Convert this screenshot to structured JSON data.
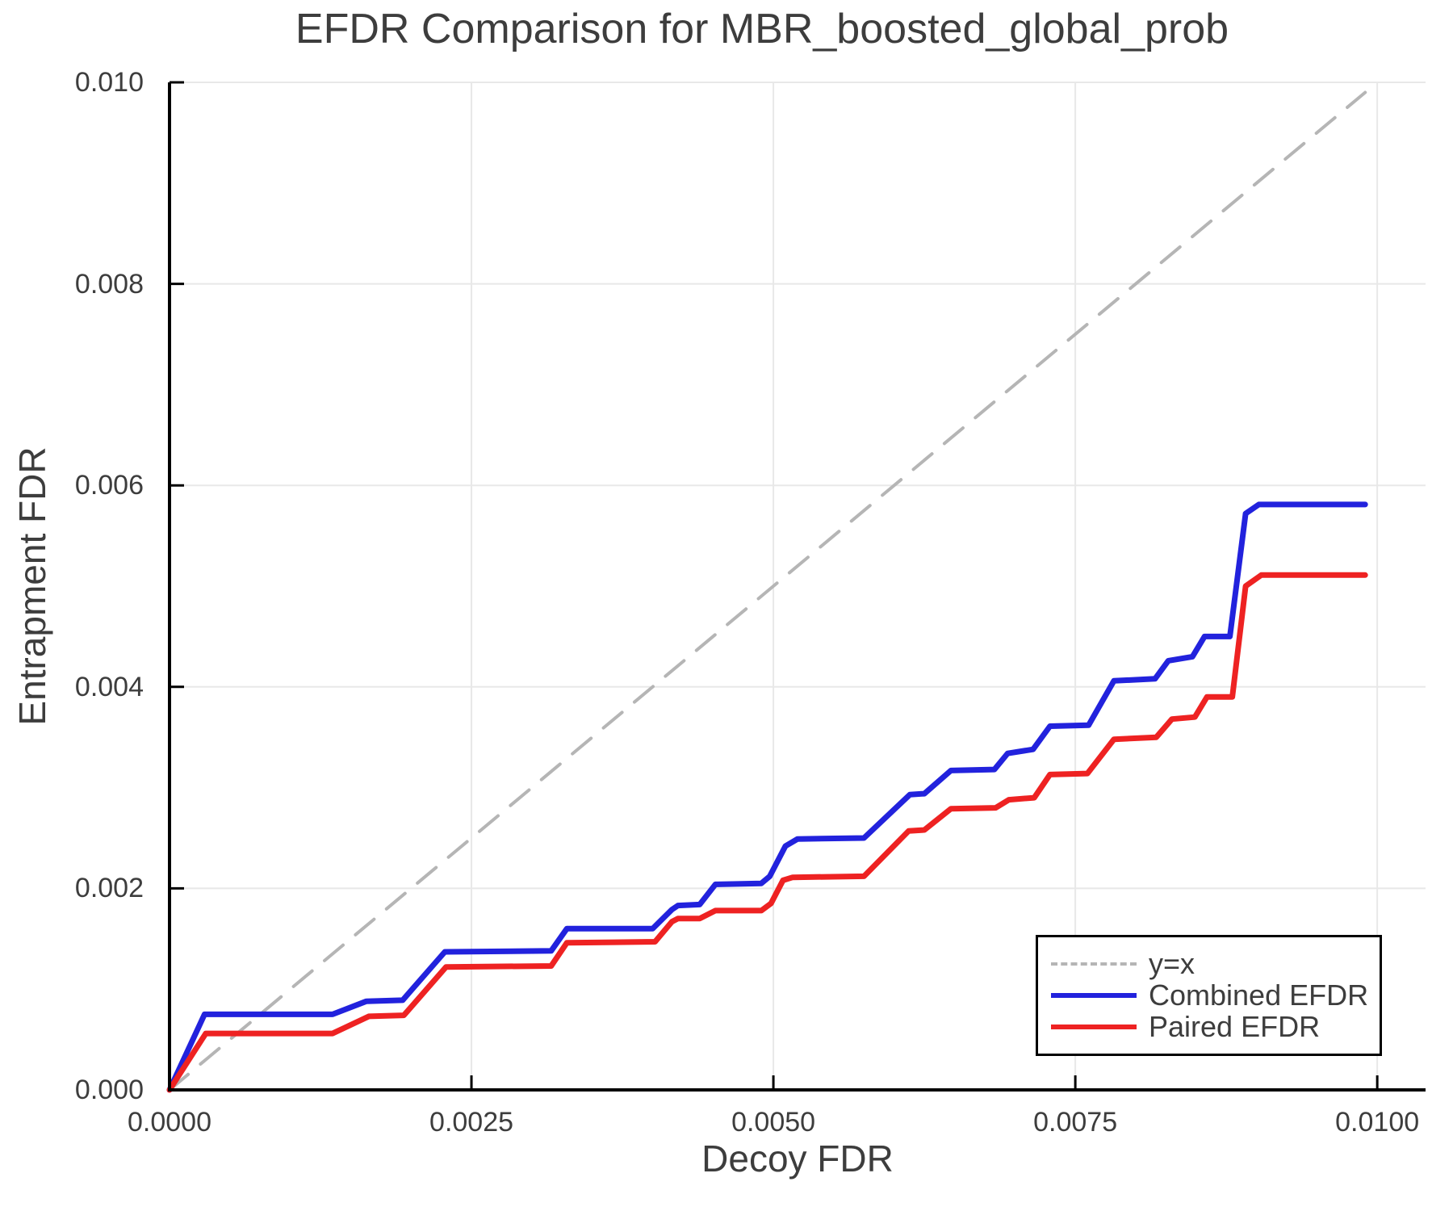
{
  "chart_data": {
    "type": "line",
    "title": "EFDR Comparison for MBR_boosted_global_prob",
    "xlabel": "Decoy FDR",
    "ylabel": "Entrapment FDR",
    "xlim": [
      0,
      0.0104
    ],
    "ylim": [
      0,
      0.01
    ],
    "grid": true,
    "grid_color": "#e8e8e8",
    "spine_color": "#000000",
    "text_color": "#3d3d3d",
    "legend_position": "bottom-right",
    "xticks": {
      "values": [
        0,
        0.0025,
        0.005,
        0.0075,
        0.01
      ],
      "labels": [
        "0.0000",
        "0.0025",
        "0.0050",
        "0.0075",
        "0.0100"
      ]
    },
    "yticks": {
      "values": [
        0,
        0.002,
        0.004,
        0.006,
        0.008,
        0.01
      ],
      "labels": [
        "0.000",
        "0.002",
        "0.004",
        "0.006",
        "0.008",
        "0.010"
      ]
    },
    "series": [
      {
        "name": "y=x",
        "style": "dashed",
        "color": "#b5b5b5",
        "width": 4,
        "points": [
          [
            0,
            0
          ],
          [
            0.0099,
            0.0099
          ]
        ]
      },
      {
        "name": "Combined EFDR",
        "style": "solid",
        "color": "#2222dd",
        "width": 7,
        "points": [
          [
            0.0,
            0.0
          ],
          [
            0.00029,
            0.00075
          ],
          [
            0.00135,
            0.00075
          ],
          [
            0.00163,
            0.00088
          ],
          [
            0.00193,
            0.00089
          ],
          [
            0.00228,
            0.00137
          ],
          [
            0.00316,
            0.00138
          ],
          [
            0.00329,
            0.0016
          ],
          [
            0.004,
            0.0016
          ],
          [
            0.00416,
            0.00179
          ],
          [
            0.00421,
            0.00183
          ],
          [
            0.00439,
            0.00184
          ],
          [
            0.00452,
            0.00204
          ],
          [
            0.0049,
            0.00205
          ],
          [
            0.00497,
            0.00212
          ],
          [
            0.0051,
            0.00242
          ],
          [
            0.0052,
            0.00249
          ],
          [
            0.00575,
            0.0025
          ],
          [
            0.00613,
            0.00293
          ],
          [
            0.00625,
            0.00294
          ],
          [
            0.00647,
            0.00317
          ],
          [
            0.00683,
            0.00318
          ],
          [
            0.00694,
            0.00334
          ],
          [
            0.00715,
            0.00338
          ],
          [
            0.00729,
            0.00361
          ],
          [
            0.00761,
            0.00362
          ],
          [
            0.00782,
            0.00406
          ],
          [
            0.00816,
            0.00408
          ],
          [
            0.00827,
            0.00426
          ],
          [
            0.00847,
            0.0043
          ],
          [
            0.00857,
            0.0045
          ],
          [
            0.00878,
            0.0045
          ],
          [
            0.00891,
            0.00572
          ],
          [
            0.00902,
            0.00581
          ],
          [
            0.0099,
            0.00581
          ]
        ]
      },
      {
        "name": "Paired EFDR",
        "style": "solid",
        "color": "#ee2222",
        "width": 7,
        "points": [
          [
            0.0,
            0.0
          ],
          [
            0.0003,
            0.00056
          ],
          [
            0.00135,
            0.00056
          ],
          [
            0.00165,
            0.00073
          ],
          [
            0.00194,
            0.00074
          ],
          [
            0.00229,
            0.00122
          ],
          [
            0.00316,
            0.00123
          ],
          [
            0.00329,
            0.00146
          ],
          [
            0.00402,
            0.00147
          ],
          [
            0.00416,
            0.00167
          ],
          [
            0.00421,
            0.0017
          ],
          [
            0.00439,
            0.0017
          ],
          [
            0.00452,
            0.00178
          ],
          [
            0.0049,
            0.00178
          ],
          [
            0.00498,
            0.00185
          ],
          [
            0.00508,
            0.00208
          ],
          [
            0.00516,
            0.00211
          ],
          [
            0.00575,
            0.00212
          ],
          [
            0.00612,
            0.00257
          ],
          [
            0.00625,
            0.00258
          ],
          [
            0.00647,
            0.00279
          ],
          [
            0.00684,
            0.0028
          ],
          [
            0.00695,
            0.00288
          ],
          [
            0.00716,
            0.0029
          ],
          [
            0.00729,
            0.00313
          ],
          [
            0.0076,
            0.00314
          ],
          [
            0.00782,
            0.00348
          ],
          [
            0.00817,
            0.0035
          ],
          [
            0.0083,
            0.00368
          ],
          [
            0.00849,
            0.0037
          ],
          [
            0.00859,
            0.0039
          ],
          [
            0.0088,
            0.0039
          ],
          [
            0.00891,
            0.005
          ],
          [
            0.00904,
            0.00511
          ],
          [
            0.0099,
            0.00511
          ]
        ]
      }
    ]
  }
}
